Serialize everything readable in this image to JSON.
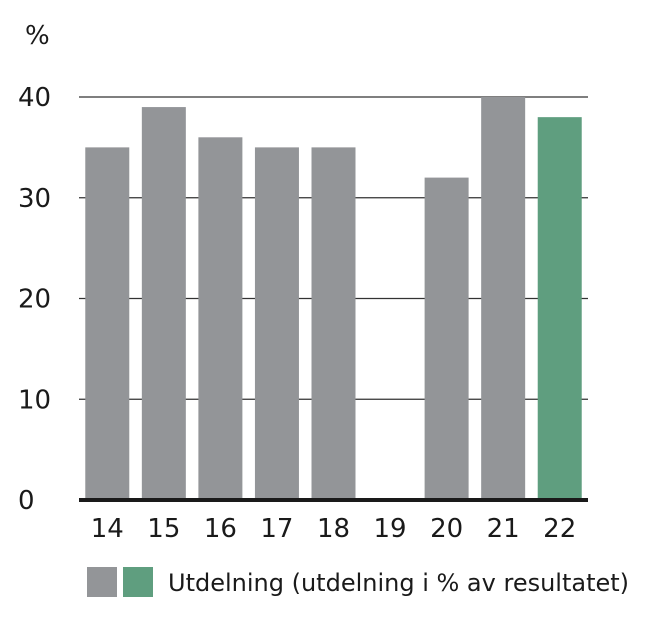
{
  "chart_data": {
    "type": "bar",
    "unit_label": "%",
    "categories": [
      "14",
      "15",
      "16",
      "17",
      "18",
      "19",
      "20",
      "21",
      "22"
    ],
    "values": [
      35,
      39,
      36,
      35,
      35,
      0,
      32,
      40,
      38
    ],
    "highlight_index": 8,
    "ylim": [
      0,
      40
    ],
    "yticks": [
      0,
      10,
      20,
      30,
      40
    ],
    "grid": true,
    "colors": {
      "bar": "#939598",
      "highlight": "#5f9e7f",
      "grid": "#333333",
      "axis": "#1a1a1a"
    },
    "legend": {
      "placement": "bottom",
      "label": "Utdelning (utdelning i % av resultatet)"
    }
  }
}
